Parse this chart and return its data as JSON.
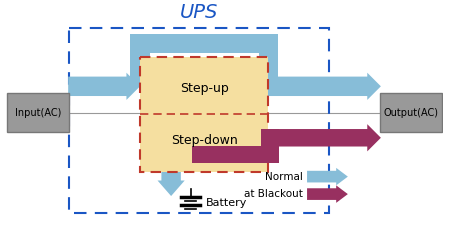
{
  "title": "UPS",
  "title_color": "#1a56c4",
  "title_fontsize": 14,
  "bg_color": "#ffffff",
  "ups_box_color": "#1a56c4",
  "inner_box_fill": "#f5dfa0",
  "inner_box_border": "#c0392b",
  "step_up_text": "Step-up",
  "step_down_text": "Step-down",
  "io_box_fill": "#999999",
  "io_box_edge": "#777777",
  "input_label": "Input(AC)",
  "output_label": "Output(AC)",
  "normal_color": "#87bdd8",
  "blackout_color": "#983060",
  "battery_label": "Battery",
  "legend_normal": "Normal",
  "legend_blackout": "at Blackout"
}
